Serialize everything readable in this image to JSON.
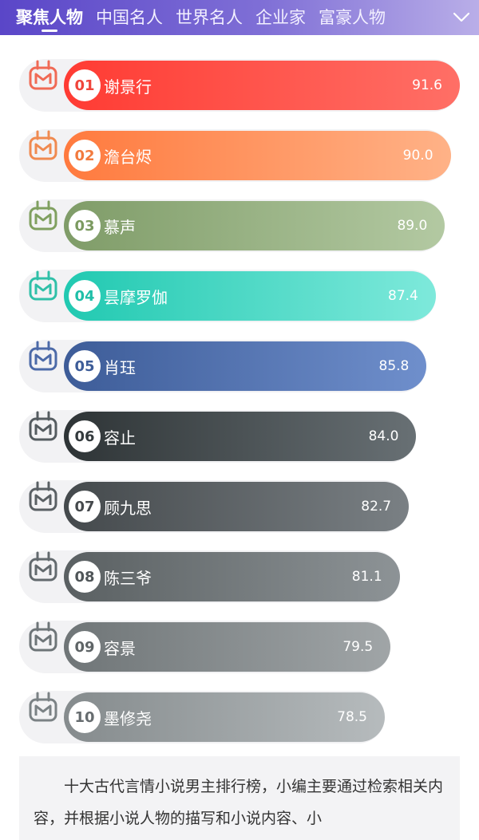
{
  "tabs": [
    {
      "label": "聚焦人物"
    },
    {
      "label": "中国名人"
    },
    {
      "label": "世界名人"
    },
    {
      "label": "企业家"
    },
    {
      "label": "富豪人物"
    }
  ],
  "more_icon": "chevron-down-icon",
  "ranking": [
    {
      "rank": "01",
      "name": "谢景行",
      "score": "91.6",
      "score_value": 91.6,
      "color_from": "#ff3b33",
      "color_to": "#ff6f66",
      "rank_color": "#f0453b",
      "icon_color": "#f06a55"
    },
    {
      "rank": "02",
      "name": "澹台烬",
      "score": "90.0",
      "score_value": 90.0,
      "color_from": "#ff7a3e",
      "color_to": "#ffb287",
      "rank_color": "#f27a3e",
      "icon_color": "#f08a50"
    },
    {
      "rank": "03",
      "name": "慕声",
      "score": "89.0",
      "score_value": 89.0,
      "color_from": "#7f9c68",
      "color_to": "#b3c9a2",
      "rank_color": "#7b9a60",
      "icon_color": "#80a060"
    },
    {
      "rank": "04",
      "name": "昙摩罗伽",
      "score": "87.4",
      "score_value": 87.4,
      "color_from": "#21c9b1",
      "color_to": "#7ee9db",
      "rank_color": "#1fbfa8",
      "icon_color": "#30c0a8"
    },
    {
      "rank": "05",
      "name": "肖珏",
      "score": "85.8",
      "score_value": 85.8,
      "color_from": "#3d5c98",
      "color_to": "#6f8fcc",
      "rank_color": "#3d5c98",
      "icon_color": "#4c6aa8"
    },
    {
      "rank": "06",
      "name": "容止",
      "score": "84.0",
      "score_value": 84.0,
      "color_from": "#2e3436",
      "color_to": "#687074",
      "rank_color": "#333a3d",
      "icon_color": "#555c60"
    },
    {
      "rank": "07",
      "name": "顾九思",
      "score": "82.7",
      "score_value": 82.7,
      "color_from": "#44494c",
      "color_to": "#7a8084",
      "rank_color": "#45494c",
      "icon_color": "#5a6064"
    },
    {
      "rank": "08",
      "name": "陈三爷",
      "score": "81.1",
      "score_value": 81.1,
      "color_from": "#5a6062",
      "color_to": "#8d9396",
      "rank_color": "#4f5558",
      "icon_color": "#636a6e"
    },
    {
      "rank": "09",
      "name": "容景",
      "score": "79.5",
      "score_value": 79.5,
      "color_from": "#6f7577",
      "color_to": "#a0a5a7",
      "rank_color": "#5e6466",
      "icon_color": "#6e7578"
    },
    {
      "rank": "10",
      "name": "墨修尧",
      "score": "78.5",
      "score_value": 78.5,
      "color_from": "#858b8d",
      "color_to": "#b6bbbd",
      "rank_color": "#666c6f",
      "icon_color": "#7b8285"
    }
  ],
  "description": "十大古代言情小说男主排行榜，小编主要通过检索相关内容，并根据小说人物的描写和小说内容、小"
}
